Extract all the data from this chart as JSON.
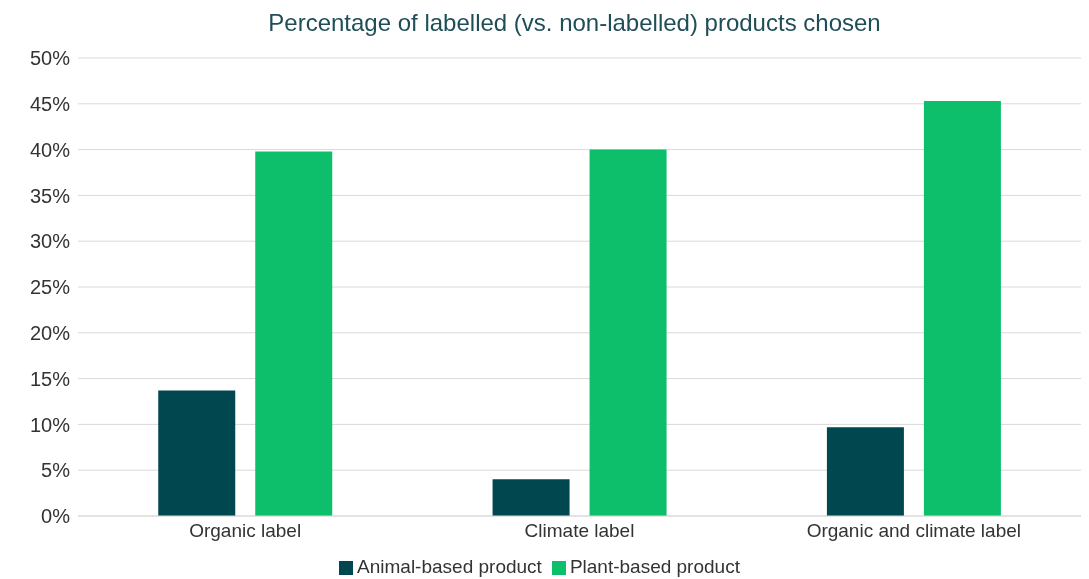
{
  "chart_data": {
    "type": "bar",
    "title": "Percentage of labelled (vs. non-labelled) products chosen",
    "categories": [
      "Organic label",
      "Climate label",
      "Organic and climate label"
    ],
    "series": [
      {
        "name": "Animal-based product",
        "color": "#004750",
        "values": [
          13.7,
          4.0,
          9.7
        ]
      },
      {
        "name": "Plant-based product",
        "color": "#0dbf6b",
        "values": [
          39.8,
          40.0,
          45.3
        ]
      }
    ],
    "ylim": [
      0,
      50
    ],
    "yticks": [
      {
        "value": 0,
        "label": "0%"
      },
      {
        "value": 5,
        "label": "5%"
      },
      {
        "value": 10,
        "label": "10%"
      },
      {
        "value": 15,
        "label": "15%"
      },
      {
        "value": 20,
        "label": "20%"
      },
      {
        "value": 25,
        "label": "25%"
      },
      {
        "value": 30,
        "label": "30%"
      },
      {
        "value": 35,
        "label": "35%"
      },
      {
        "value": 40,
        "label": "40%"
      },
      {
        "value": 45,
        "label": "45%"
      },
      {
        "value": 50,
        "label": "50%"
      }
    ],
    "grid": "y",
    "legend": "bottom"
  }
}
